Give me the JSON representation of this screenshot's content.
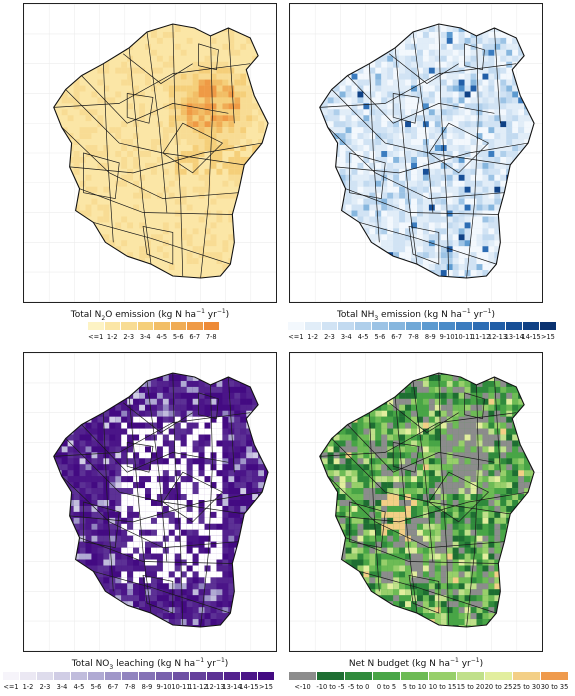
{
  "panels": [
    {
      "id": "n2o",
      "caption_html": "Total N<sub>2</sub>O emission (kg N ha<sup>−1</sup> yr<sup>−1</sup>)",
      "caption": "Total N2O emission (kg N ha−1 yr−1)",
      "palette": "oranges",
      "legend": [
        {
          "label": "<=1",
          "color": "#fdf3c4"
        },
        {
          "label": "1-2",
          "color": "#fbe6a6"
        },
        {
          "label": "2-3",
          "color": "#f8dc94"
        },
        {
          "label": "3-4",
          "color": "#f5cf7a"
        },
        {
          "label": "4-5",
          "color": "#f2be66"
        },
        {
          "label": "5-6",
          "color": "#f0ac55"
        },
        {
          "label": "6-7",
          "color": "#ef9a45"
        },
        {
          "label": "7-8",
          "color": "#ee8a36"
        }
      ]
    },
    {
      "id": "nh3",
      "caption": "Total NH3 emission (kg N ha−1 yr−1)",
      "palette": "blues",
      "legend": [
        {
          "label": "<=1",
          "color": "#f3f8fd"
        },
        {
          "label": "1-2",
          "color": "#e1edf8"
        },
        {
          "label": "2-3",
          "color": "#d1e3f4"
        },
        {
          "label": "3-4",
          "color": "#c2daf0"
        },
        {
          "label": "4-5",
          "color": "#afcfeb"
        },
        {
          "label": "5-6",
          "color": "#9cc3e5"
        },
        {
          "label": "6-7",
          "color": "#86b6de"
        },
        {
          "label": "7-8",
          "color": "#70a8d7"
        },
        {
          "label": "8-9",
          "color": "#5c9ad0"
        },
        {
          "label": "9-10",
          "color": "#4a8bc8"
        },
        {
          "label": "10-11",
          "color": "#3b7cbf"
        },
        {
          "label": "11-12",
          "color": "#2d6db4"
        },
        {
          "label": "12-13",
          "color": "#215ea7"
        },
        {
          "label": "13-14",
          "color": "#174f97"
        },
        {
          "label": "14-15",
          "color": "#0f4185"
        },
        {
          "label": ">15",
          "color": "#0a3270"
        }
      ]
    },
    {
      "id": "no3",
      "caption": "Total NO3 leaching (kg N ha−1 yr−1)",
      "palette": "purples",
      "legend": [
        {
          "label": "<=1",
          "color": "#f6f4fa"
        },
        {
          "label": "1-2",
          "color": "#ebe8f3"
        },
        {
          "label": "2-3",
          "color": "#dedcec"
        },
        {
          "label": "3-4",
          "color": "#d0cde5"
        },
        {
          "label": "4-5",
          "color": "#c0bcdc"
        },
        {
          "label": "5-6",
          "color": "#b0aad3"
        },
        {
          "label": "6-7",
          "color": "#a097c9"
        },
        {
          "label": "7-8",
          "color": "#9184bf"
        },
        {
          "label": "8-9",
          "color": "#8572b6"
        },
        {
          "label": "9-10",
          "color": "#7961ad"
        },
        {
          "label": "10-11",
          "color": "#6e50a4"
        },
        {
          "label": "11-12",
          "color": "#65409c"
        },
        {
          "label": "12-13",
          "color": "#5c3195"
        },
        {
          "label": "13-14",
          "color": "#53228e"
        },
        {
          "label": "14-15",
          "color": "#4b1588"
        },
        {
          "label": ">15",
          "color": "#430a82"
        }
      ]
    },
    {
      "id": "budget",
      "caption": "Net N budget (kg N ha−1 yr−1)",
      "palette": "budget",
      "legend": [
        {
          "label": "<-10",
          "color": "#8c8c8c"
        },
        {
          "label": "-10 to -5",
          "color": "#1e6e32"
        },
        {
          "label": "-5 to 0",
          "color": "#2f8a3c"
        },
        {
          "label": "0 to 5",
          "color": "#48a546"
        },
        {
          "label": "5 to 10",
          "color": "#6dbb55"
        },
        {
          "label": "10 to 15",
          "color": "#97cf6a"
        },
        {
          "label": "15 to 20",
          "color": "#c0e08a"
        },
        {
          "label": "20 to 25",
          "color": "#e2ee9e"
        },
        {
          "label": "25 to 30",
          "color": "#f3cf86"
        },
        {
          "label": "30 to 35",
          "color": "#ef9a4c"
        }
      ]
    }
  ]
}
